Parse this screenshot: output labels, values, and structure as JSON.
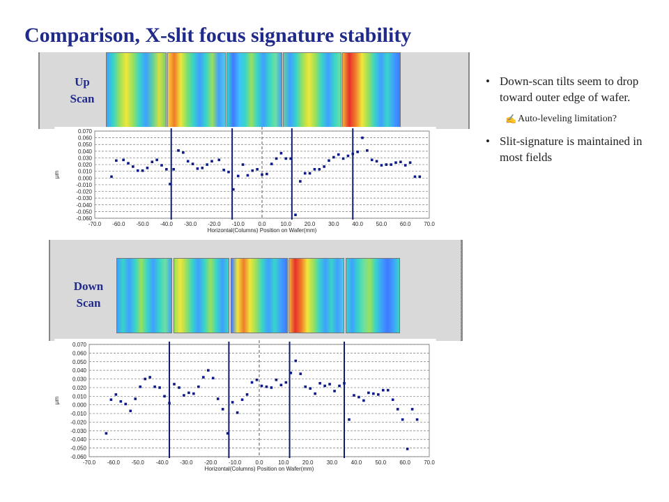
{
  "title": "Comparison, X-slit focus signature stability",
  "labels": {
    "up_scan": [
      "Up",
      "Scan"
    ],
    "down_scan": [
      "Down",
      "Scan"
    ]
  },
  "bullets": [
    {
      "text": "Down-scan tilts seem to drop toward outer edge of wafer."
    },
    {
      "text": "Auto-leveling limitation?",
      "icon": "pen-icon"
    },
    {
      "text": "Slit-signature is maintained in most fields"
    }
  ],
  "colors": {
    "title": "#1f2a8a",
    "marker": "#0d1a8a",
    "field_line": "#0d1a6e",
    "panel_bg": "#d9d9d9"
  },
  "chart_data": [
    {
      "type": "scatter",
      "name": "up-scan",
      "xlabel": "Horizontal(Columns) Position on Wafer(mm)",
      "ylabel": "µm",
      "xlim": [
        -70,
        70
      ],
      "ylim": [
        -0.06,
        0.07
      ],
      "x_ticks": [
        -70,
        -60,
        -50,
        -40,
        -30,
        -20,
        -10,
        0,
        10,
        20,
        30,
        40,
        50,
        60,
        70
      ],
      "x_tick_labels": [
        "-70.0",
        "-60.0",
        "-50.0",
        "-40.0",
        "-30.0",
        "-20.0",
        "-10.0",
        "0.0",
        "10.0",
        "20.0",
        "30.0",
        "40.0",
        "50.0",
        "60.0",
        "70.0"
      ],
      "y_ticks": [
        0.07,
        0.06,
        0.05,
        0.04,
        0.03,
        0.02,
        0.01,
        0,
        -0.01,
        -0.02,
        -0.03,
        -0.04,
        -0.05,
        -0.06
      ],
      "y_tick_labels": [
        "0.070",
        "0.060",
        "0.050",
        "0.040",
        "0.030",
        "0.020",
        "0.010",
        "0.000",
        "-0.010",
        "-0.020",
        "-0.030",
        "-0.040",
        "-0.050",
        "-0.060"
      ],
      "grid": true,
      "field_lines_x": [
        -38,
        -12.5,
        12.5,
        38
      ],
      "center_line_x": 0,
      "points": {
        "x": [
          -63,
          -61,
          -58,
          -56,
          -54,
          -52,
          -50,
          -48,
          -46,
          -44,
          -42,
          -40,
          -38.5,
          -37,
          -35,
          -33,
          -31,
          -29,
          -27,
          -25,
          -23,
          -21,
          -18,
          -16,
          -14,
          -12,
          -10,
          -8,
          -6,
          -4,
          -2,
          0,
          2,
          4,
          6,
          8,
          10,
          12,
          14,
          16,
          18,
          20,
          22,
          24,
          26,
          28,
          30,
          32,
          34,
          36,
          38,
          40,
          42,
          44,
          46,
          48,
          50,
          52,
          54,
          56,
          58,
          60,
          62,
          64,
          66
        ],
        "y": [
          0.002,
          0.026,
          0.027,
          0.022,
          0.017,
          0.011,
          0.011,
          0.015,
          0.024,
          0.027,
          0.019,
          0.013,
          -0.009,
          0.013,
          0.041,
          0.038,
          0.025,
          0.021,
          0.014,
          0.015,
          0.02,
          0.025,
          0.027,
          0.012,
          0.009,
          -0.017,
          0.003,
          0.02,
          0.004,
          0.011,
          0.013,
          0.005,
          0.006,
          0.021,
          0.029,
          0.037,
          0.029,
          0.029,
          -0.055,
          -0.005,
          0.007,
          0.007,
          0.013,
          0.013,
          0.017,
          0.026,
          0.031,
          0.035,
          0.029,
          0.033,
          0.036,
          0.039,
          0.06,
          0.041,
          0.027,
          0.025,
          0.019,
          0.02,
          0.02,
          0.023,
          0.024,
          0.019,
          0.023,
          0.002,
          0.002
        ]
      }
    },
    {
      "type": "scatter",
      "name": "down-scan",
      "xlabel": "Horizontal(Columns) Position on Wafer(mm)",
      "ylabel": "µm",
      "xlim": [
        -70,
        70
      ],
      "ylim": [
        -0.06,
        0.07
      ],
      "x_ticks": [
        -70,
        -60,
        -50,
        -40,
        -30,
        -20,
        -10,
        0,
        10,
        20,
        30,
        40,
        50,
        60,
        70
      ],
      "x_tick_labels": [
        "-70.0",
        "-60.0",
        "-50.0",
        "-40.0",
        "-30.0",
        "-20.0",
        "-10.0",
        "0.0",
        "10.0",
        "20.0",
        "30.0",
        "40.0",
        "50.0",
        "60.0",
        "70.0"
      ],
      "y_ticks": [
        0.07,
        0.06,
        0.05,
        0.04,
        0.03,
        0.02,
        0.01,
        0,
        -0.01,
        -0.02,
        -0.03,
        -0.04,
        -0.05,
        -0.06
      ],
      "y_tick_labels": [
        "0.070",
        "0.060",
        "0.050",
        "0.040",
        "0.030",
        "0.020",
        "0.010",
        "0.000",
        "-0.010",
        "-0.020",
        "-0.030",
        "-0.040",
        "-0.050",
        "-0.060"
      ],
      "grid": true,
      "field_lines_x": [
        -37,
        -12.5,
        12.5,
        35
      ],
      "center_line_x": 0,
      "points": {
        "x": [
          -63,
          -61,
          -59,
          -57,
          -55,
          -53,
          -51,
          -49,
          -47,
          -45,
          -43,
          -41,
          -39,
          -37,
          -35,
          -33,
          -31,
          -29,
          -27,
          -25,
          -23,
          -21,
          -19,
          -17,
          -15,
          -13,
          -11,
          -9,
          -7,
          -5,
          -3,
          -1,
          1,
          3,
          5,
          7,
          9,
          11,
          13,
          15,
          17,
          19,
          21,
          23,
          25,
          27,
          29,
          31,
          33,
          35,
          37,
          39,
          41,
          43,
          45,
          47,
          49,
          51,
          53,
          55,
          57,
          59,
          61,
          63,
          65
        ],
        "y": [
          -0.033,
          0.006,
          0.012,
          0.004,
          0.001,
          -0.007,
          0.007,
          0.021,
          0.03,
          0.032,
          0.021,
          0.02,
          0.01,
          0.002,
          0.024,
          0.02,
          0.011,
          0.014,
          0.013,
          0.021,
          0.032,
          0.04,
          0.031,
          0.007,
          -0.005,
          -0.033,
          0.003,
          -0.009,
          0.006,
          0.012,
          0.026,
          0.029,
          0.022,
          0.021,
          0.02,
          0.029,
          0.023,
          0.026,
          0.037,
          0.051,
          0.036,
          0.021,
          0.019,
          0.013,
          0.025,
          0.022,
          0.024,
          0.016,
          0.022,
          0.025,
          -0.017,
          0.011,
          0.009,
          0.005,
          0.014,
          0.013,
          0.012,
          0.017,
          0.017,
          0.006,
          -0.005,
          -0.017,
          -0.051,
          -0.005,
          -0.017
        ]
      }
    }
  ]
}
